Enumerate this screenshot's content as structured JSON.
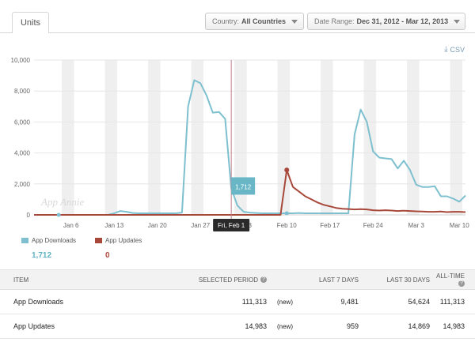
{
  "tab": {
    "label": "Units"
  },
  "filters": {
    "country_label": "Country:",
    "country_value": "All Countries",
    "date_label": "Date Range:",
    "date_value": "Dec 31, 2012 - Mar 12, 2013"
  },
  "csv_label": "CSV",
  "colors": {
    "downloads": "#7ec0cf",
    "updates": "#a8483a",
    "tooltip_bg": "#69b7c6"
  },
  "chart_data": {
    "type": "line",
    "title": "",
    "ylim": [
      0,
      10000
    ],
    "y_ticks": [
      0,
      2000,
      4000,
      6000,
      8000,
      10000
    ],
    "y_tick_labels": [
      "0",
      "2,000",
      "4,000",
      "6,000",
      "8,000",
      "10,000"
    ],
    "x_ticks": [
      6,
      13,
      20,
      27,
      34,
      41,
      48,
      55,
      62,
      69
    ],
    "x_tick_labels": [
      "Jan 6",
      "Jan 13",
      "Jan 20",
      "Jan 27",
      "Feb 3",
      "Feb 10",
      "Feb 17",
      "Feb 24",
      "Mar 3",
      "Mar 10"
    ],
    "x_start_label": "Dec 31, 2012",
    "weekend_day_indices": [
      5,
      6,
      12,
      13,
      19,
      20,
      26,
      27,
      33,
      34,
      40,
      41,
      47,
      48,
      54,
      55,
      61,
      62,
      68,
      69
    ],
    "series": [
      {
        "name": "App Downloads",
        "color": "#7ec0cf",
        "values": [
          0,
          0,
          0,
          0,
          0,
          0,
          0,
          0,
          0,
          0,
          0,
          0,
          0,
          100,
          250,
          200,
          120,
          100,
          100,
          100,
          100,
          100,
          100,
          100,
          150,
          7000,
          8700,
          8500,
          7700,
          6600,
          6650,
          6200,
          1712,
          600,
          200,
          150,
          120,
          100,
          100,
          100,
          100,
          100,
          100,
          120,
          100,
          100,
          100,
          100,
          100,
          100,
          100,
          100,
          5200,
          6800,
          6000,
          4100,
          3700,
          3650,
          3600,
          3000,
          3500,
          2900,
          1950,
          1800,
          1800,
          1850,
          1200,
          1200,
          1050,
          850,
          1250
        ]
      },
      {
        "name": "App Updates",
        "color": "#a8483a",
        "values": [
          0,
          0,
          0,
          0,
          0,
          0,
          0,
          0,
          0,
          0,
          0,
          0,
          0,
          0,
          0,
          0,
          0,
          0,
          0,
          0,
          0,
          0,
          0,
          0,
          0,
          0,
          0,
          0,
          0,
          0,
          0,
          0,
          0,
          0,
          0,
          0,
          0,
          0,
          0,
          0,
          0,
          2900,
          1800,
          1500,
          1200,
          1000,
          800,
          650,
          550,
          450,
          400,
          380,
          350,
          370,
          350,
          300,
          280,
          300,
          280,
          250,
          270,
          250,
          230,
          220,
          200,
          200,
          220,
          180,
          200,
          200,
          180
        ]
      }
    ],
    "cursor_index": 32,
    "tooltip_label": "Fri, Feb 1",
    "tooltip_value": "1,712",
    "watermark": "App Annie"
  },
  "legend": [
    {
      "name": "App Downloads",
      "value": "1,712"
    },
    {
      "name": "App Updates",
      "value": "0"
    }
  ],
  "table": {
    "headers": [
      "Item",
      "Selected Period",
      "Last 7 Days",
      "Last 30 Days",
      "All-Time"
    ],
    "help_glyph": "?",
    "rows": [
      {
        "item": "App Downloads",
        "selected": "111,313",
        "badge": "(new)",
        "last7": "9,481",
        "last30": "54,624",
        "all": "111,313"
      },
      {
        "item": "App Updates",
        "selected": "14,983",
        "badge": "(new)",
        "last7": "959",
        "last30": "14,869",
        "all": "14,983"
      }
    ]
  }
}
